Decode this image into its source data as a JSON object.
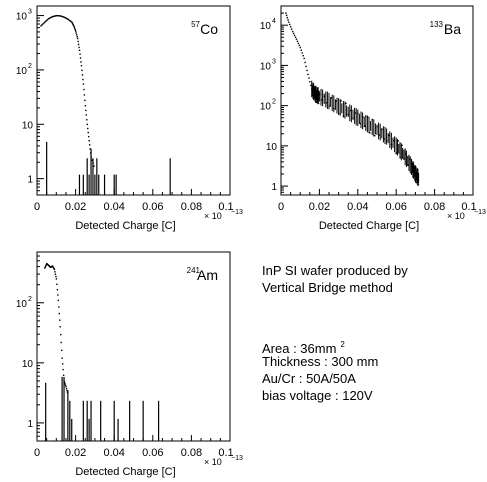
{
  "chart_data": [
    {
      "type": "line",
      "label": "57Co",
      "label_sup": "57",
      "label_main": "Co",
      "xlabel": "Detected Charge [C]",
      "x_multiplier": "× 10",
      "x_exponent": "−13",
      "xlim": [
        0,
        0.1
      ],
      "x_ticks": [
        "0",
        "0.02",
        "0.04",
        "0.06",
        "0.08",
        "0.1"
      ],
      "y_scale": "log",
      "ylim": [
        0.5,
        1500
      ],
      "y_ticks": [
        {
          "value": 1,
          "label": "1"
        },
        {
          "value": 10,
          "label": "10"
        },
        {
          "value": 100,
          "label": "10",
          "exp": "2"
        },
        {
          "value": 1000,
          "label": "10",
          "exp": "3"
        }
      ],
      "series_curve": [
        [
          0.002,
          650
        ],
        [
          0.004,
          760
        ],
        [
          0.006,
          880
        ],
        [
          0.008,
          960
        ],
        [
          0.01,
          1000
        ],
        [
          0.012,
          990
        ],
        [
          0.014,
          940
        ],
        [
          0.016,
          860
        ],
        [
          0.018,
          760
        ],
        [
          0.019,
          650
        ],
        [
          0.02,
          520
        ],
        [
          0.021,
          380
        ],
        [
          0.022,
          230
        ],
        [
          0.023,
          120
        ],
        [
          0.024,
          55
        ],
        [
          0.025,
          22
        ],
        [
          0.026,
          10
        ],
        [
          0.027,
          5
        ],
        [
          0.028,
          2.5
        ],
        [
          0.03,
          1.5
        ]
      ],
      "spikes": [
        [
          0.005,
          4
        ],
        [
          0.022,
          1
        ],
        [
          0.024,
          1
        ],
        [
          0.026,
          2
        ],
        [
          0.027,
          1
        ],
        [
          0.028,
          3
        ],
        [
          0.029,
          2
        ],
        [
          0.03,
          1
        ],
        [
          0.031,
          2
        ],
        [
          0.032,
          1
        ],
        [
          0.035,
          1
        ],
        [
          0.04,
          1
        ],
        [
          0.041,
          1
        ],
        [
          0.069,
          2
        ]
      ]
    },
    {
      "type": "line",
      "label": "133Ba",
      "label_sup": "133",
      "label_main": "Ba",
      "xlabel": "Detected Charge [C]",
      "x_multiplier": "× 10",
      "x_exponent": "−13",
      "xlim": [
        0,
        0.1
      ],
      "x_ticks": [
        "0",
        "0.02",
        "0.04",
        "0.06",
        "0.08",
        "0.1"
      ],
      "y_scale": "log",
      "ylim": [
        0.6,
        30000
      ],
      "y_ticks": [
        {
          "value": 1,
          "label": "1"
        },
        {
          "value": 10,
          "label": "10"
        },
        {
          "value": 100,
          "label": "10",
          "exp": "2"
        },
        {
          "value": 1000,
          "label": "10",
          "exp": "3"
        },
        {
          "value": 10000,
          "label": "10",
          "exp": "4"
        }
      ],
      "series_curve": [
        [
          0.0025,
          20000
        ],
        [
          0.004,
          12000
        ],
        [
          0.006,
          7000
        ],
        [
          0.008,
          4500
        ],
        [
          0.01,
          2800
        ],
        [
          0.012,
          1500
        ],
        [
          0.014,
          600
        ],
        [
          0.016,
          260
        ],
        [
          0.018,
          190
        ],
        [
          0.02,
          170
        ],
        [
          0.025,
          130
        ],
        [
          0.03,
          95
        ],
        [
          0.035,
          70
        ],
        [
          0.04,
          50
        ],
        [
          0.045,
          35
        ],
        [
          0.05,
          25
        ],
        [
          0.055,
          17
        ],
        [
          0.06,
          10
        ],
        [
          0.064,
          6
        ],
        [
          0.068,
          3
        ],
        [
          0.07,
          2
        ],
        [
          0.072,
          1.5
        ]
      ],
      "spikes": []
    },
    {
      "type": "line",
      "label": "241Am",
      "label_sup": "241",
      "label_main": "Am",
      "xlabel": "Detected Charge [C]",
      "x_multiplier": "× 10",
      "x_exponent": "−13",
      "xlim": [
        0,
        0.1
      ],
      "x_ticks": [
        "0",
        "0.02",
        "0.04",
        "0.06",
        "0.08",
        "0.1"
      ],
      "y_scale": "log",
      "ylim": [
        0.5,
        700
      ],
      "y_ticks": [
        {
          "value": 1,
          "label": "1"
        },
        {
          "value": 10,
          "label": "10"
        },
        {
          "value": 100,
          "label": "10",
          "exp": "2"
        }
      ],
      "series_curve": [
        [
          0.004,
          380
        ],
        [
          0.005,
          450
        ],
        [
          0.006,
          420
        ],
        [
          0.007,
          390
        ],
        [
          0.008,
          410
        ],
        [
          0.009,
          360
        ],
        [
          0.01,
          250
        ],
        [
          0.011,
          110
        ],
        [
          0.012,
          40
        ],
        [
          0.013,
          12
        ],
        [
          0.014,
          5
        ],
        [
          0.015,
          4
        ],
        [
          0.016,
          3
        ]
      ],
      "spikes": [
        [
          0.0045,
          4
        ],
        [
          0.013,
          5
        ],
        [
          0.014,
          5
        ],
        [
          0.016,
          3
        ],
        [
          0.017,
          2
        ],
        [
          0.018,
          1
        ],
        [
          0.024,
          2
        ],
        [
          0.026,
          2
        ],
        [
          0.027,
          1
        ],
        [
          0.028,
          2
        ],
        [
          0.033,
          2
        ],
        [
          0.04,
          2
        ],
        [
          0.042,
          1
        ],
        [
          0.048,
          2
        ],
        [
          0.055,
          2
        ],
        [
          0.063,
          2
        ]
      ]
    }
  ],
  "info": {
    "line1": "InP SI wafer produced by",
    "line2": "Vertical Bridge method",
    "area": "Area : 36mm",
    "area_sup": "2",
    "thickness": "Thickness : 300  mm",
    "electrode": "Au/Cr  : 50A/50A",
    "bias": "bias voltage : 120V"
  }
}
